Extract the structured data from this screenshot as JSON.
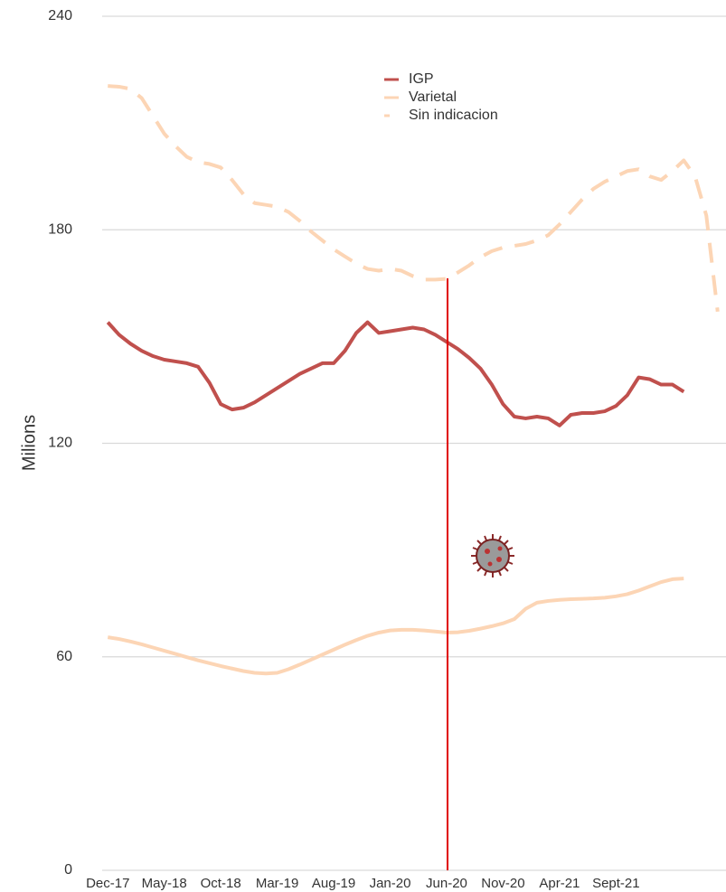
{
  "chart_data": {
    "type": "line",
    "y_label": "Milions",
    "categories": [
      "Dec-17",
      null,
      null,
      null,
      null,
      "May-18",
      null,
      null,
      null,
      null,
      "Oct-18",
      null,
      null,
      null,
      null,
      "Mar-19",
      null,
      null,
      null,
      null,
      "Aug-19",
      null,
      null,
      null,
      null,
      "Jan-20",
      null,
      null,
      null,
      null,
      "Jun-20",
      null,
      null,
      null,
      null,
      "Nov-20",
      null,
      null,
      null,
      null,
      "Apr-21",
      null,
      null,
      null,
      null,
      "Sept-21",
      null,
      null,
      null,
      null,
      null,
      null,
      null,
      null,
      null
    ],
    "series": [
      {
        "name": "IGP",
        "color": "#c0504d",
        "style": "solid",
        "values": [
          154,
          150.5,
          148,
          146,
          144.5,
          143.5,
          143,
          142.5,
          141.5,
          137,
          131,
          129.5,
          130,
          131.5,
          133.5,
          135.5,
          137.5,
          139.5,
          141,
          142.5,
          142.5,
          146,
          151,
          154,
          151,
          151.5,
          152,
          152.5,
          152,
          150.5,
          148.5,
          146.5,
          144,
          141,
          136.5,
          131,
          127.5,
          127,
          127.5,
          127,
          125,
          128,
          128.5,
          128.5,
          129,
          130.5,
          133.5,
          138.5,
          138,
          136.5,
          136.5,
          134.5,
          null,
          null,
          null
        ]
      },
      {
        "name": "Varietal",
        "color": "#fcd5b5",
        "style": "solid",
        "values": [
          65.5,
          65,
          64.3,
          63.5,
          62.6,
          61.7,
          60.8,
          59.9,
          59,
          58.2,
          57.4,
          56.7,
          56,
          55.5,
          55.3,
          55.5,
          56.5,
          57.8,
          59.2,
          60.6,
          62,
          63.4,
          64.7,
          65.9,
          66.8,
          67.4,
          67.6,
          67.6,
          67.4,
          67.1,
          66.8,
          66.9,
          67.3,
          67.9,
          68.6,
          69.4,
          70.6,
          73.5,
          75.2,
          75.7,
          76,
          76.2,
          76.3,
          76.4,
          76.6,
          77,
          77.6,
          78.6,
          79.8,
          81,
          81.8,
          82,
          null,
          null,
          null
        ]
      },
      {
        "name": "Sin indicacion",
        "color": "#fcd5b5",
        "style": "dashed",
        "values": [
          220.4,
          220.2,
          219.6,
          217,
          212,
          207,
          203.5,
          200.5,
          199,
          198.5,
          197.5,
          194,
          190,
          187.5,
          187,
          186.5,
          185,
          182.5,
          179.5,
          177,
          174.5,
          172.5,
          170.5,
          169,
          168.5,
          169,
          168.5,
          167,
          166,
          166,
          166.2,
          168,
          170,
          172.3,
          174,
          175,
          175.5,
          176,
          177,
          178.5,
          181.5,
          185,
          188.5,
          191.5,
          193.5,
          195,
          196.5,
          197,
          195,
          194,
          196.5,
          199.5,
          195,
          184,
          157
        ]
      }
    ],
    "ylim": [
      0,
      240
    ],
    "yticks": [
      0,
      60,
      120,
      180,
      240
    ],
    "grid": true
  }
}
